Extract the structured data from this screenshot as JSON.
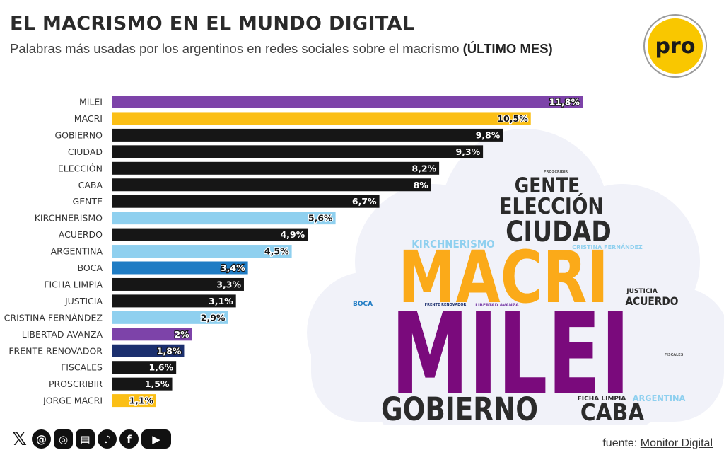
{
  "header": {
    "title": "EL MACRISMO EN EL MUNDO DIGITAL",
    "subtitle": "Palabras más usadas por los argentinos en redes sociales sobre el macrismo",
    "subtitle_emphasis": "(ÚLTIMO MES)"
  },
  "logo": {
    "text": "pro",
    "color": "#f9c700"
  },
  "chart_data": {
    "type": "bar",
    "orientation": "horizontal",
    "title": "EL MACRISMO EN EL MUNDO DIGITAL",
    "unit": "%",
    "categories": [
      "MILEI",
      "MACRI",
      "GOBIERNO",
      "CIUDAD",
      "ELECCIÓN",
      "CABA",
      "GENTE",
      "KIRCHNERISMO",
      "ACUERDO",
      "ARGENTINA",
      "BOCA",
      "FICHA LIMPIA",
      "JUSTICIA",
      "CRISTINA FERNÁNDEZ",
      "LIBERTAD AVANZA",
      "FRENTE RENOVADOR",
      "FISCALES",
      "PROSCRIBIR",
      "JORGE MACRI"
    ],
    "values": [
      11.8,
      10.5,
      9.8,
      9.3,
      8.2,
      8,
      6.7,
      5.6,
      4.9,
      4.5,
      3.4,
      3.3,
      3.1,
      2.9,
      2,
      1.8,
      1.6,
      1.5,
      1.1
    ],
    "labels": [
      "11,8%",
      "10,5%",
      "9,8%",
      "9,3%",
      "8,2%",
      "8%",
      "6,7%",
      "5,6%",
      "4,9%",
      "4,5%",
      "3,4%",
      "3,3%",
      "3,1%",
      "2,9%",
      "2%",
      "1,8%",
      "1,6%",
      "1,5%",
      "1,1%"
    ],
    "colors": [
      "#7d43a9",
      "#fbbf16",
      "#161616",
      "#161616",
      "#161616",
      "#161616",
      "#161616",
      "#8fd0ef",
      "#161616",
      "#8fd0ef",
      "#1f7cc4",
      "#161616",
      "#161616",
      "#8fd0ef",
      "#7d43a9",
      "#1b2f6e",
      "#161616",
      "#161616",
      "#fbbf16"
    ],
    "xlim": [
      0,
      11.8
    ]
  },
  "wordcloud": {
    "words": [
      {
        "text": "PROSCRIBIR",
        "color": "#555555"
      },
      {
        "text": "GENTE",
        "color": "#2b2b2b"
      },
      {
        "text": "ELECCIÓN",
        "color": "#2b2b2b"
      },
      {
        "text": "CIUDAD",
        "color": "#2b2b2b"
      },
      {
        "text": "KIRCHNERISMO",
        "color": "#8fd0ef"
      },
      {
        "text": "CRISTINA FERNÁNDEZ",
        "color": "#8fd0ef"
      },
      {
        "text": "MACRI",
        "color": "#fbaa19"
      },
      {
        "text": "JUSTICIA",
        "color": "#2b2b2b"
      },
      {
        "text": "ACUERDO",
        "color": "#2b2b2b"
      },
      {
        "text": "BOCA",
        "color": "#1f7cc4"
      },
      {
        "text": "FRENTE RENOVADOR",
        "color": "#1b2f6e"
      },
      {
        "text": "LIBERTAD AVANZA",
        "color": "#7d43a9"
      },
      {
        "text": "MILEI",
        "color": "#7a0a7c"
      },
      {
        "text": "FISCALES",
        "color": "#555555"
      },
      {
        "text": "FICHA LIMPIA",
        "color": "#2b2b2b"
      },
      {
        "text": "ARGENTINA",
        "color": "#8fd0ef"
      },
      {
        "text": "GOBIERNO",
        "color": "#2b2b2b"
      },
      {
        "text": "CABA",
        "color": "#2b2b2b"
      }
    ],
    "cloud_fill": "#f1f2f9"
  },
  "social": {
    "icons": [
      "x-icon",
      "threads-icon",
      "instagram-icon",
      "newsletter-icon",
      "tiktok-icon",
      "facebook-icon",
      "youtube-icon"
    ],
    "glyphs": [
      "𝕏",
      "@",
      "◎",
      "▤",
      "♪",
      "f",
      "▶"
    ]
  },
  "source": {
    "prefix": "fuente:",
    "name": "Monitor Digital"
  }
}
